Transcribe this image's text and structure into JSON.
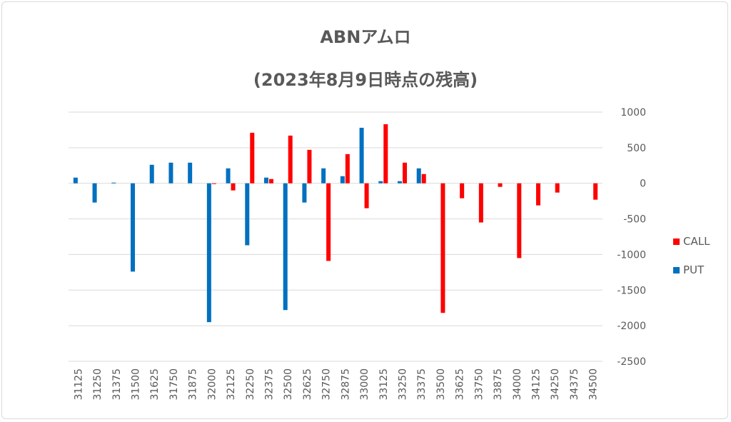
{
  "chart_data": {
    "type": "bar",
    "title": "ABNアムロ",
    "subtitle": "(2023年8月9日時点の残高)",
    "categories": [
      "31125",
      "31250",
      "31375",
      "31500",
      "31625",
      "31750",
      "31875",
      "32000",
      "32125",
      "32250",
      "32375",
      "32500",
      "32625",
      "32750",
      "32875",
      "33000",
      "33125",
      "33250",
      "33375",
      "33500",
      "33625",
      "33750",
      "33875",
      "34000",
      "34125",
      "34250",
      "34375",
      "34500"
    ],
    "series": [
      {
        "name": "CALL",
        "color": "#ff0000",
        "values": [
          0,
          0,
          0,
          0,
          0,
          0,
          0,
          -10,
          -100,
          710,
          60,
          670,
          470,
          -1090,
          410,
          -350,
          830,
          290,
          130,
          -1820,
          -210,
          -550,
          -50,
          -1050,
          -310,
          -130,
          0,
          -230
        ]
      },
      {
        "name": "PUT",
        "color": "#0070c0",
        "values": [
          80,
          -270,
          10,
          -1240,
          260,
          290,
          290,
          -1950,
          210,
          -870,
          80,
          -1780,
          -270,
          210,
          100,
          780,
          30,
          30,
          210,
          0,
          0,
          0,
          0,
          0,
          0,
          0,
          0,
          0
        ]
      }
    ],
    "ylim": [
      -2500,
      1000
    ],
    "yticks": [
      1000,
      500,
      0,
      -500,
      -1000,
      -1500,
      -2000,
      -2500
    ],
    "grid": true,
    "legend": "right"
  }
}
